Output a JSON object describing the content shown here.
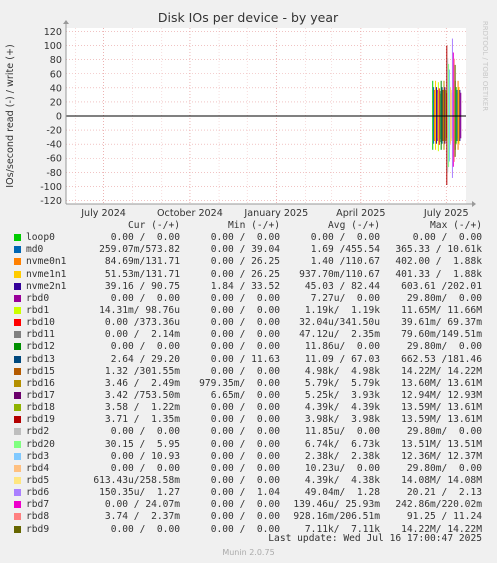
{
  "colors": {
    "background": "#f0f0f0",
    "plot_bg": "#ffffff",
    "grid_major": "#e8a0a0",
    "grid_minor": "#f0c8c8",
    "zero_line": "#000000",
    "text": "#333333",
    "watermark": "#c8c8c8"
  },
  "chart_data": {
    "type": "line",
    "title": "Disk IOs per device - by year",
    "ylabel": "IOs/second read (-) / write (+)",
    "watermark": "RRDTOOL / TOBI OETIKER",
    "ylim": [
      -125,
      125
    ],
    "yticks": [
      -120,
      -100,
      -80,
      -60,
      -40,
      -20,
      0,
      20,
      40,
      60,
      80,
      100,
      120
    ],
    "ytick_labels": [
      "-120",
      "-100",
      "-80",
      "-60",
      "-40",
      "-20",
      "0",
      "20",
      "40",
      "60",
      "80",
      "100",
      "120"
    ],
    "xlim": [
      "2024-05-22",
      "2025-07-22"
    ],
    "xticks": [
      "2024-07-01",
      "2024-10-01",
      "2025-01-01",
      "2025-04-01",
      "2025-07-01"
    ],
    "xtick_labels": [
      "July 2024",
      "October 2024",
      "January 2025",
      "April 2025",
      "July 2025"
    ],
    "grid": true,
    "series_note": "Activity only from about 2025-06-18; before that all devices are flat at 0.",
    "activity": {
      "x": [
        "2025-06-18",
        "2025-06-21",
        "2025-06-24",
        "2025-06-27",
        "2025-06-30",
        "2025-07-03",
        "2025-07-06",
        "2025-07-09",
        "2025-07-12",
        "2025-07-15"
      ],
      "write_max": [
        50,
        50,
        48,
        50,
        50,
        100,
        50,
        110,
        50,
        50
      ],
      "read_max": [
        -48,
        -48,
        -50,
        -48,
        -48,
        -98,
        -48,
        -88,
        -48,
        -48
      ]
    }
  },
  "legend": {
    "headers": {
      "cur": "Cur (-/+)",
      "min": "Min (-/+)",
      "avg": "Avg (-/+)",
      "max": "Max (-/+)"
    },
    "rows": [
      {
        "name": "loop0",
        "color": "#00cc00",
        "cur": "0.00 /  0.00",
        "min": "0.00 /  0.00",
        "avg": "0.00 /  0.00",
        "max": "0.00 /  0.00"
      },
      {
        "name": "md0",
        "color": "#0066b3",
        "cur": "259.07m/573.82",
        "min": "0.00 / 39.04",
        "avg": "1.69 /455.54",
        "max": "365.33 / 10.61k"
      },
      {
        "name": "nvme0n1",
        "color": "#ff8000",
        "cur": "84.69m/131.71",
        "min": "0.00 / 26.25",
        "avg": "1.40 /110.67",
        "max": "402.00 /  1.88k"
      },
      {
        "name": "nvme1n1",
        "color": "#ffcc00",
        "cur": "51.53m/131.71",
        "min": "0.00 / 26.25",
        "avg": "937.70m/110.67",
        "max": "401.33 /  1.88k"
      },
      {
        "name": "nvme2n1",
        "color": "#330099",
        "cur": "39.16 / 90.75",
        "min": "1.84 / 33.52",
        "avg": "45.03 / 82.44",
        "max": "603.61 /202.01"
      },
      {
        "name": "rbd0",
        "color": "#990099",
        "cur": "0.00 /  0.00",
        "min": "0.00 /  0.00",
        "avg": "7.27u/  0.00",
        "max": "29.80m/  0.00"
      },
      {
        "name": "rbd1",
        "color": "#ccff00",
        "cur": "14.31m/ 98.76u",
        "min": "0.00 /  0.00",
        "avg": "1.19k/  1.19k",
        "max": "11.65M/ 11.66M"
      },
      {
        "name": "rbd10",
        "color": "#ff0000",
        "cur": "0.00 /373.36u",
        "min": "0.00 /  0.00",
        "avg": "32.04u/341.50u",
        "max": "39.61m/ 69.37m"
      },
      {
        "name": "rbd11",
        "color": "#808080",
        "cur": "0.00 /  2.14m",
        "min": "0.00 /  0.00",
        "avg": "47.12u/  2.35m",
        "max": "79.60m/149.51m"
      },
      {
        "name": "rbd12",
        "color": "#008f00",
        "cur": "0.00 /  0.00",
        "min": "0.00 /  0.00",
        "avg": "11.86u/  0.00",
        "max": "29.80m/  0.00"
      },
      {
        "name": "rbd13",
        "color": "#00487d",
        "cur": "2.64 / 29.20",
        "min": "0.00 / 11.63",
        "avg": "11.09 / 67.03",
        "max": "662.53 /181.46"
      },
      {
        "name": "rbd15",
        "color": "#b35a00",
        "cur": "1.32 /301.55m",
        "min": "0.00 /  0.00",
        "avg": "4.98k/  4.98k",
        "max": "14.22M/ 14.22M"
      },
      {
        "name": "rbd16",
        "color": "#b38f00",
        "cur": "3.46 /  2.49m",
        "min": "979.35m/  0.00",
        "avg": "5.79k/  5.79k",
        "max": "13.60M/ 13.61M"
      },
      {
        "name": "rbd17",
        "color": "#6b006b",
        "cur": "3.42 /753.50m",
        "min": "6.65m/  0.00",
        "avg": "5.25k/  3.93k",
        "max": "12.94M/ 12.93M"
      },
      {
        "name": "rbd18",
        "color": "#8fb300",
        "cur": "3.58 /  1.22m",
        "min": "0.00 /  0.00",
        "avg": "4.39k/  4.39k",
        "max": "13.59M/ 13.61M"
      },
      {
        "name": "rbd19",
        "color": "#b30000",
        "cur": "3.71 /  1.35m",
        "min": "0.00 /  0.00",
        "avg": "3.98k/  3.98k",
        "max": "13.59M/ 13.61M"
      },
      {
        "name": "rbd2",
        "color": "#bebebe",
        "cur": "0.00 /  0.00",
        "min": "0.00 /  0.00",
        "avg": "11.85u/  0.00",
        "max": "29.80m/  0.00"
      },
      {
        "name": "rbd20",
        "color": "#80ff80",
        "cur": "30.15 /  5.95",
        "min": "0.00 /  0.00",
        "avg": "6.74k/  6.73k",
        "max": "13.51M/ 13.51M"
      },
      {
        "name": "rbd3",
        "color": "#80c9ff",
        "cur": "0.00 / 10.93",
        "min": "0.00 /  0.00",
        "avg": "2.38k/  2.38k",
        "max": "12.36M/ 12.37M"
      },
      {
        "name": "rbd4",
        "color": "#ffc080",
        "cur": "0.00 /  0.00",
        "min": "0.00 /  0.00",
        "avg": "10.23u/  0.00",
        "max": "29.80m/  0.00"
      },
      {
        "name": "rbd5",
        "color": "#ffe680",
        "cur": "613.43u/258.58m",
        "min": "0.00 /  0.00",
        "avg": "4.39k/  4.38k",
        "max": "14.08M/ 14.08M"
      },
      {
        "name": "rbd6",
        "color": "#aa80ff",
        "cur": "150.35u/  1.27",
        "min": "0.00 /  1.04",
        "avg": "49.04m/  1.28",
        "max": "20.21 /  2.13"
      },
      {
        "name": "rbd7",
        "color": "#ee00cc",
        "cur": "0.00 / 24.07m",
        "min": "0.00 /  0.00",
        "avg": "139.46u/ 25.93m",
        "max": "242.86m/220.02m"
      },
      {
        "name": "rbd8",
        "color": "#ff8080",
        "cur": "3.74 /  2.37m",
        "min": "0.00 /  0.00",
        "avg": "928.16m/206.51m",
        "max": "91.25 / 11.24"
      },
      {
        "name": "rbd9",
        "color": "#666600",
        "cur": "0.00 /  0.00",
        "min": "0.00 /  0.00",
        "avg": "7.11k/  7.11k",
        "max": "14.22M/ 14.22M"
      }
    ]
  },
  "last_update": "Last update: Wed Jul 16 17:00:47 2025",
  "footer": "Munin 2.0.75"
}
